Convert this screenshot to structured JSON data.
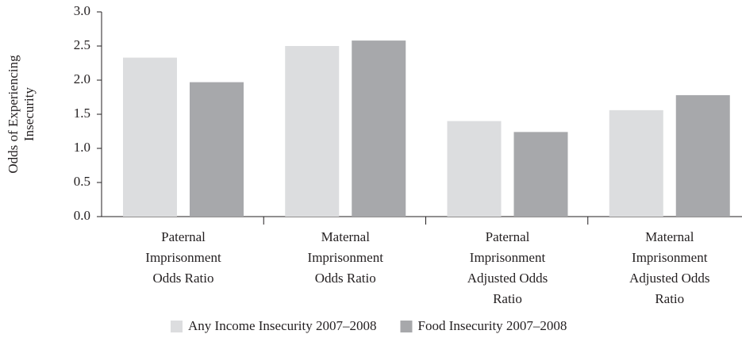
{
  "chart_data": {
    "type": "bar",
    "y_label": [
      "Odds of Experiencing",
      "Insecurity"
    ],
    "categories": [
      [
        "Paternal",
        "Imprisonment",
        "Odds Ratio"
      ],
      [
        "Maternal",
        "Imprisonment",
        "Odds Ratio"
      ],
      [
        "Paternal",
        "Imprisonment",
        "Adjusted Odds",
        "Ratio"
      ],
      [
        "Maternal",
        "Imprisonment",
        "Adjusted Odds",
        "Ratio"
      ]
    ],
    "series": [
      {
        "name": "Any Income Insecurity 2007–2008",
        "color": "#dcdddf",
        "values": [
          2.33,
          2.5,
          1.4,
          1.56
        ]
      },
      {
        "name": "Food Insecurity 2007–2008",
        "color": "#a7a8ab",
        "values": [
          1.97,
          2.58,
          1.24,
          1.78
        ]
      }
    ],
    "ylim": [
      0,
      3
    ],
    "yticks": [
      {
        "value": 0,
        "label": "0.0"
      },
      0.5,
      {
        "value": 1,
        "label": "1.0"
      },
      1.5,
      {
        "value": 2,
        "label": "2.0"
      },
      2.5,
      {
        "value": 3,
        "label": "3.0"
      }
    ],
    "grid": false,
    "legend": "bottom"
  }
}
